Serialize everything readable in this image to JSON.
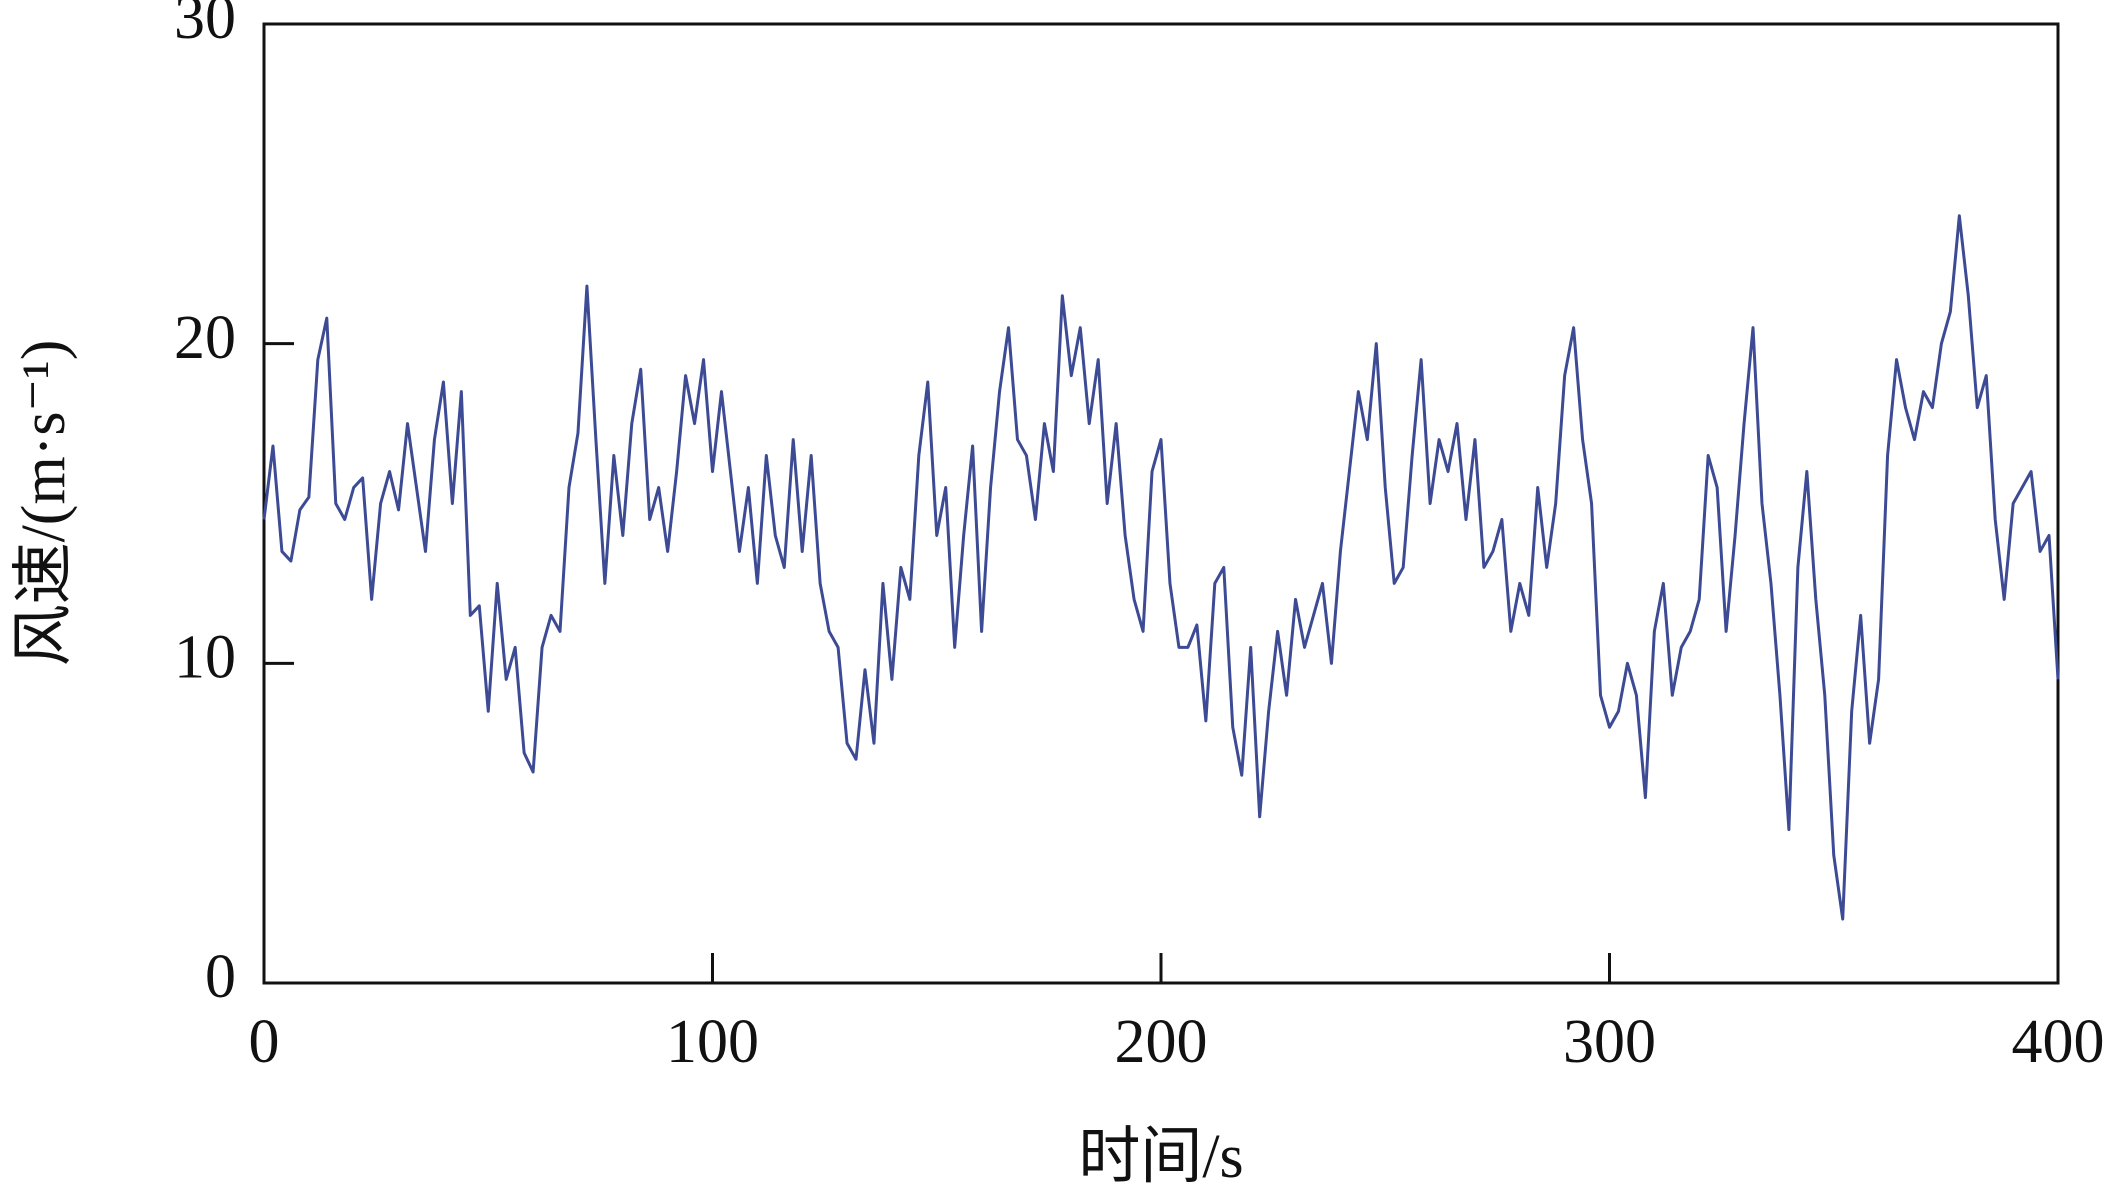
{
  "chart_data": {
    "type": "line",
    "x_label": "时间/s",
    "y_label": "风速/(m·s⁻¹)",
    "xlim": [
      0,
      400
    ],
    "xticks": [
      0,
      100,
      200,
      300,
      400
    ],
    "ylim": [
      0,
      30
    ],
    "yticks": [
      0,
      10,
      20,
      30
    ],
    "grid": false,
    "series": [
      {
        "color": "#3d4a94",
        "x": [
          0,
          2,
          4,
          6,
          8,
          10,
          12,
          14,
          16,
          18,
          20,
          22,
          24,
          26,
          28,
          30,
          32,
          34,
          36,
          38,
          40,
          42,
          44,
          46,
          48,
          50,
          52,
          54,
          56,
          58,
          60,
          62,
          64,
          66,
          68,
          70,
          72,
          74,
          76,
          78,
          80,
          82,
          84,
          86,
          88,
          90,
          92,
          94,
          96,
          98,
          100,
          102,
          104,
          106,
          108,
          110,
          112,
          114,
          116,
          118,
          120,
          122,
          124,
          126,
          128,
          130,
          132,
          134,
          136,
          138,
          140,
          142,
          144,
          146,
          148,
          150,
          152,
          154,
          156,
          158,
          160,
          162,
          164,
          166,
          168,
          170,
          172,
          174,
          176,
          178,
          180,
          182,
          184,
          186,
          188,
          190,
          192,
          194,
          196,
          198,
          200,
          202,
          204,
          206,
          208,
          210,
          212,
          214,
          216,
          218,
          220,
          222,
          224,
          226,
          228,
          230,
          232,
          234,
          236,
          238,
          240,
          242,
          244,
          246,
          248,
          250,
          252,
          254,
          256,
          258,
          260,
          262,
          264,
          266,
          268,
          270,
          272,
          274,
          276,
          278,
          280,
          282,
          284,
          286,
          288,
          290,
          292,
          294,
          296,
          298,
          300,
          302,
          304,
          306,
          308,
          310,
          312,
          314,
          316,
          318,
          320,
          322,
          324,
          326,
          328,
          330,
          332,
          334,
          336,
          338,
          340,
          342,
          344,
          346,
          348,
          350,
          352,
          354,
          356,
          358,
          360,
          362,
          364,
          366,
          368,
          370,
          372,
          374,
          376,
          378,
          380,
          382,
          384,
          386,
          388,
          390,
          392,
          394,
          396,
          398,
          400
        ],
        "values": [
          14.5,
          16.8,
          13.5,
          13.2,
          14.8,
          15.2,
          19.5,
          20.8,
          15.0,
          14.5,
          15.5,
          15.8,
          12.0,
          15.0,
          16.0,
          14.8,
          17.5,
          15.5,
          13.5,
          17.0,
          18.8,
          15.0,
          18.5,
          11.5,
          11.8,
          8.5,
          12.5,
          9.5,
          10.5,
          7.2,
          6.6,
          10.5,
          11.5,
          11.0,
          15.5,
          17.2,
          21.8,
          17.0,
          12.5,
          16.5,
          14.0,
          17.5,
          19.2,
          14.5,
          15.5,
          13.5,
          16.0,
          19.0,
          17.5,
          19.5,
          16.0,
          18.5,
          16.0,
          13.5,
          15.5,
          12.5,
          16.5,
          14.0,
          13.0,
          17.0,
          13.5,
          16.5,
          12.5,
          11.0,
          10.5,
          7.5,
          7.0,
          9.8,
          7.5,
          12.5,
          9.5,
          13.0,
          12.0,
          16.5,
          18.8,
          14.0,
          15.5,
          10.5,
          14.0,
          16.8,
          11.0,
          15.5,
          18.5,
          20.5,
          17.0,
          16.5,
          14.5,
          17.5,
          16.0,
          21.5,
          19.0,
          20.5,
          17.5,
          19.5,
          15.0,
          17.5,
          14.0,
          12.0,
          11.0,
          16.0,
          17.0,
          12.5,
          10.5,
          10.5,
          11.2,
          8.2,
          12.5,
          13.0,
          8.0,
          6.5,
          10.5,
          5.2,
          8.5,
          11.0,
          9.0,
          12.0,
          10.5,
          11.5,
          12.5,
          10.0,
          13.5,
          16.0,
          18.5,
          17.0,
          20.0,
          15.5,
          12.5,
          13.0,
          16.5,
          19.5,
          15.0,
          17.0,
          16.0,
          17.5,
          14.5,
          17.0,
          13.0,
          13.5,
          14.5,
          11.0,
          12.5,
          11.5,
          15.5,
          13.0,
          15.0,
          19.0,
          20.5,
          17.0,
          15.0,
          9.0,
          8.0,
          8.5,
          10.0,
          9.0,
          5.8,
          11.0,
          12.5,
          9.0,
          10.5,
          11.0,
          12.0,
          16.5,
          15.5,
          11.0,
          14.0,
          17.5,
          20.5,
          15.0,
          12.5,
          9.0,
          4.8,
          13.0,
          16.0,
          12.0,
          9.0,
          4.0,
          2.0,
          8.5,
          11.5,
          7.5,
          9.5,
          16.5,
          19.5,
          18.0,
          17.0,
          18.5,
          18.0,
          20.0,
          21.0,
          24.0,
          21.5,
          18.0,
          19.0,
          14.5,
          12.0,
          15.0,
          15.5,
          16.0,
          13.5,
          14.0,
          9.5
        ]
      }
    ]
  }
}
